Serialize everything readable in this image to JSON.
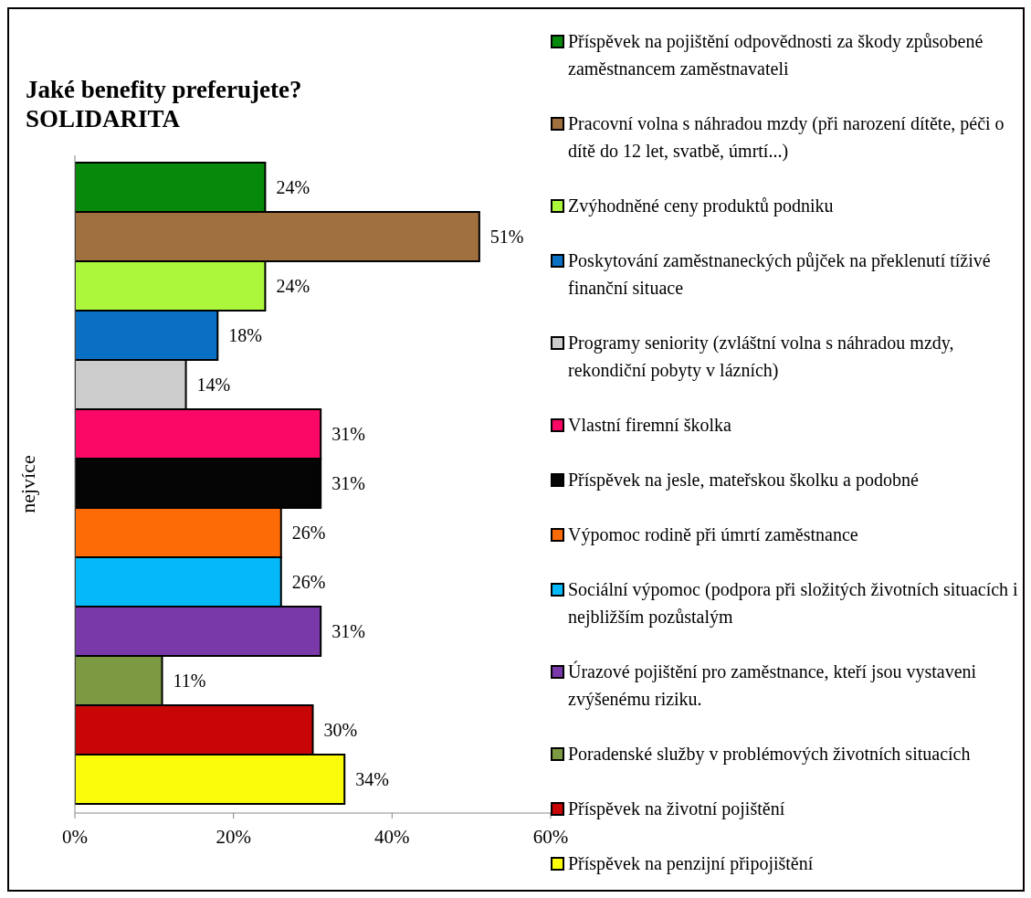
{
  "chart_data": {
    "type": "bar",
    "orientation": "horizontal",
    "title": "Jaké benefity preferujete?\nSOLIDARITA",
    "categories": [
      "nejvíce"
    ],
    "xlim": [
      0,
      60
    ],
    "xticks": [
      {
        "value": 0,
        "label": "0%"
      },
      {
        "value": 20,
        "label": "20%"
      },
      {
        "value": 40,
        "label": "40%"
      },
      {
        "value": 60,
        "label": "60%"
      }
    ],
    "legend": "right",
    "series": [
      {
        "name": "Příspěvek na pojištění odpovědnosti za škody způsobené zaměstnancem zaměstnavateli",
        "color": "#078a0b",
        "values": [
          24
        ],
        "value_labels": [
          "24%"
        ]
      },
      {
        "name": "Pracovní volna s náhradou mzdy (při narození dítěte,  péči o dítě do 12 let, svatbě, úmrtí...)",
        "color": "#a0703f",
        "values": [
          51
        ],
        "value_labels": [
          "51%"
        ]
      },
      {
        "name": "Zvýhodněné ceny produktů podniku",
        "color": "#acf73c",
        "values": [
          24
        ],
        "value_labels": [
          "24%"
        ]
      },
      {
        "name": "Poskytování zaměstnaneckých půjček na překlenutí tíživé finanční situace",
        "color": "#0a70c4",
        "values": [
          18
        ],
        "value_labels": [
          "18%"
        ]
      },
      {
        "name": "Programy seniority (zvláštní volna s náhradou mzdy, rekondiční pobyty v lázních)",
        "color": "#cccccc",
        "values": [
          14
        ],
        "value_labels": [
          "14%"
        ]
      },
      {
        "name": "Vlastní firemní školka",
        "color": "#fb0766",
        "values": [
          31
        ],
        "value_labels": [
          "31%"
        ]
      },
      {
        "name": "Příspěvek na jesle, mateřskou školku a podobné",
        "color": "#050505",
        "values": [
          31
        ],
        "value_labels": [
          "31%"
        ]
      },
      {
        "name": "Výpomoc rodině při úmrtí zaměstnance",
        "color": "#fd6b07",
        "values": [
          26
        ],
        "value_labels": [
          "26%"
        ]
      },
      {
        "name": "Sociální výpomoc (podpora při složitých životních situacích i nejbližším pozůstalým",
        "color": "#05b9f8",
        "values": [
          26
        ],
        "value_labels": [
          "26%"
        ]
      },
      {
        "name": "Úrazové pojištění pro zaměstnance, kteří jsou vystaveni zvýšenému riziku.",
        "color": "#7a39a9",
        "values": [
          31
        ],
        "value_labels": [
          "31%"
        ]
      },
      {
        "name": "Poradenské služby v problémových životních situacích",
        "color": "#7b9a42",
        "values": [
          11
        ],
        "value_labels": [
          "11%"
        ]
      },
      {
        "name": "Příspěvek na životní pojištění",
        "color": "#c90606",
        "values": [
          30
        ],
        "value_labels": [
          "30%"
        ]
      },
      {
        "name": "Příspěvek na penzijní připojištění",
        "color": "#fbfb0c",
        "values": [
          34
        ],
        "value_labels": [
          "34%"
        ]
      }
    ]
  }
}
